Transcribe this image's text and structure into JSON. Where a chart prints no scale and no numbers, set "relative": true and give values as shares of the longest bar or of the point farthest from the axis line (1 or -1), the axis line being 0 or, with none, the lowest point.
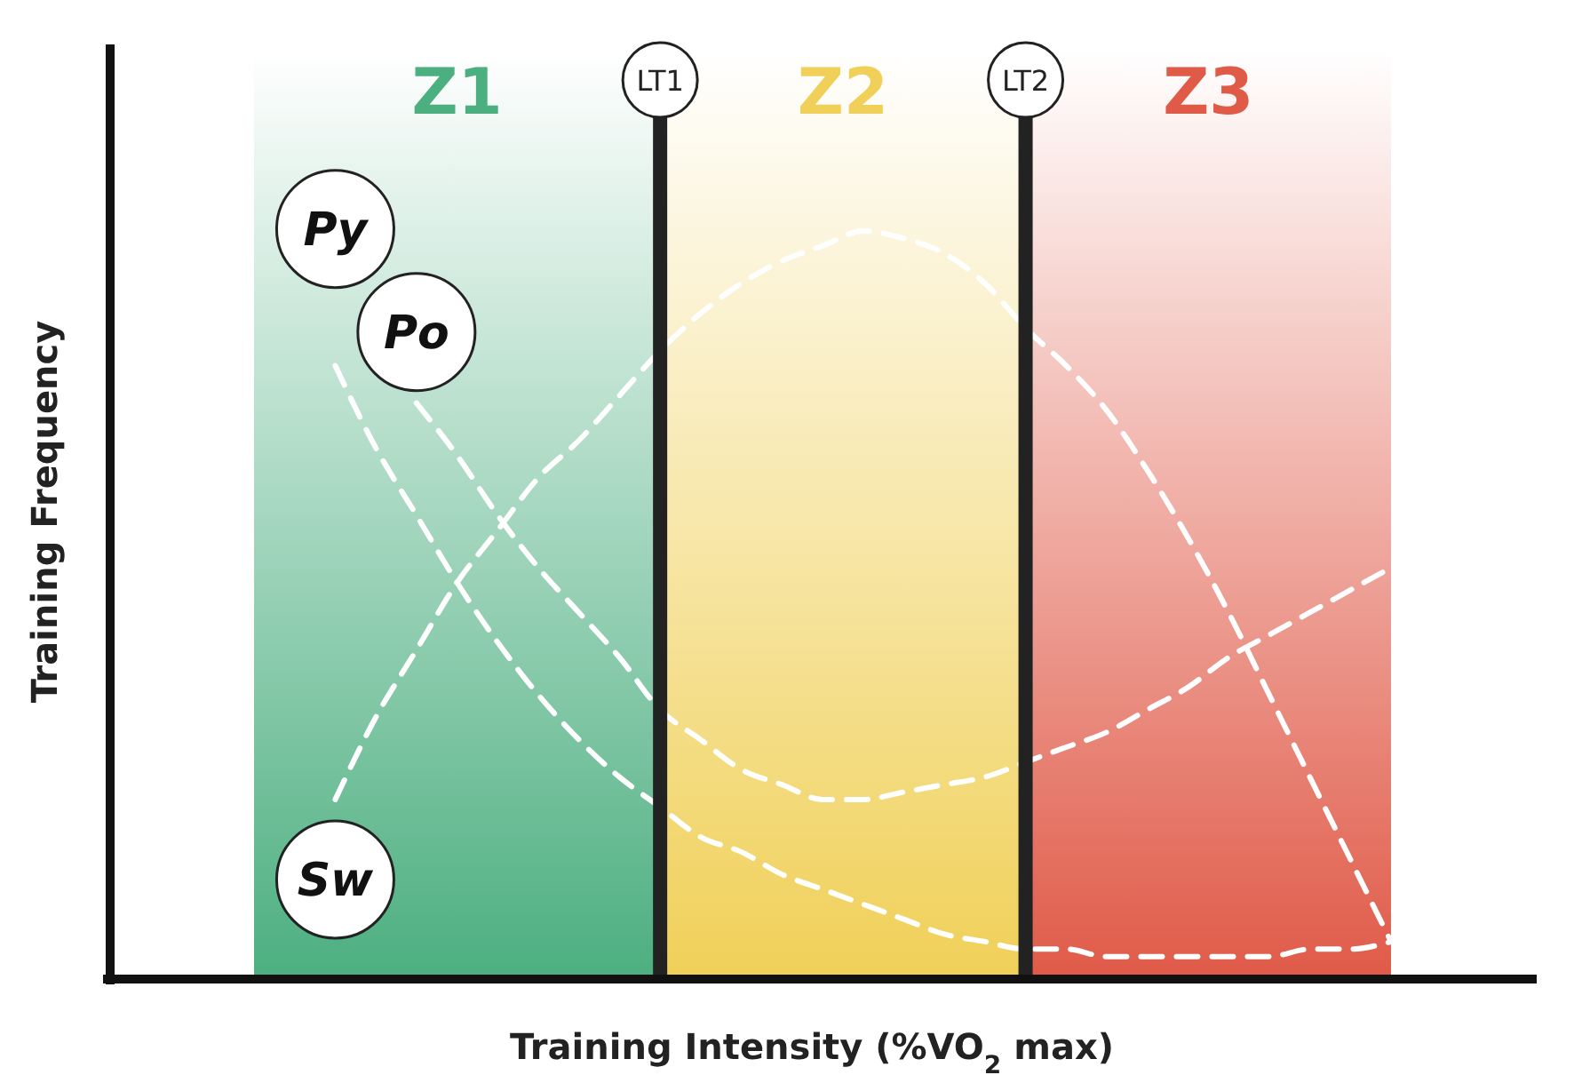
{
  "chart_data": {
    "type": "line",
    "relative": true,
    "xlabel": "Training Intensity (%VO$_{2}$ max)",
    "ylabel": "Training Frequency",
    "marker": "none",
    "line_style": "dashed",
    "legend": false,
    "grid": false,
    "categories": [
      null,
      null,
      null,
      null,
      null,
      null,
      null,
      null,
      null,
      null,
      null,
      null,
      null,
      null,
      null,
      null,
      null,
      null,
      null,
      null,
      null,
      null,
      null,
      null,
      null,
      null,
      null,
      null,
      null
    ],
    "series": [
      {
        "name": "Po",
        "color": "#ffffff",
        "values": [
          null,
          null,
          null,
          null,
          0.77,
          0.7,
          0.62,
          0.55,
          0.49,
          0.43,
          0.36,
          0.32,
          0.28,
          0.26,
          0.24,
          0.24,
          0.25,
          0.26,
          0.27,
          0.29,
          0.31,
          0.33,
          0.36,
          0.39,
          0.43,
          0.46,
          0.49,
          0.52,
          0.55
        ]
      },
      {
        "name": "Py",
        "color": "#ffffff",
        "values": [
          null,
          null,
          0.82,
          0.71,
          0.62,
          0.53,
          0.45,
          0.38,
          0.32,
          0.27,
          0.23,
          0.19,
          0.17,
          0.14,
          0.12,
          0.1,
          0.08,
          0.06,
          0.05,
          0.04,
          0.04,
          0.03,
          0.03,
          0.03,
          0.03,
          0.03,
          0.04,
          0.04,
          0.05
        ]
      },
      {
        "name": "Sw",
        "color": "#ffffff",
        "values": [
          null,
          null,
          0.24,
          0.35,
          0.44,
          0.53,
          0.6,
          0.67,
          0.72,
          0.78,
          0.84,
          0.89,
          0.93,
          0.96,
          0.98,
          1.0,
          0.99,
          0.97,
          0.93,
          0.87,
          0.82,
          0.76,
          0.68,
          0.59,
          0.49,
          0.38,
          0.27,
          0.16,
          0.05
        ]
      }
    ],
    "annotations": [
      "Z1",
      "LT1",
      "Z2",
      "LT2",
      "Z3"
    ]
  }
}
